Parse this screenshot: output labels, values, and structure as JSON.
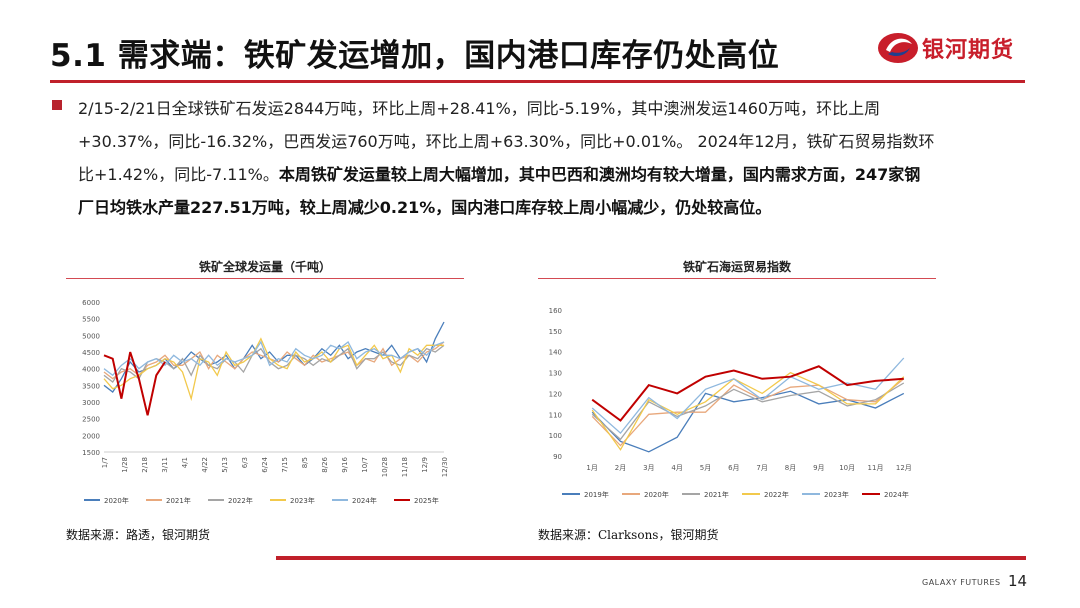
{
  "page": {
    "title": "5.1 需求端：铁矿发运增加，国内港口库存仍处高位",
    "logo_text": "银河期货",
    "footer_brand": "GALAXY FUTURES",
    "page_number": "14"
  },
  "body": {
    "line1": "2/15-2/21日全球铁矿石发运2844万吨，环比上周+28.41%，同比-5.19%，其中澳洲发运1460万吨，环比上周",
    "line2": "+30.37%，同比-16.32%，巴西发运760万吨，环比上周+63.30%，同比+0.01%。 2024年12月，铁矿石贸易指数环",
    "line3_plain": "比+1.42%，同比-7.11%。",
    "line3_bold": "本周铁矿发运量较上周大幅增加，其中巴西和澳洲均有较大增量，国内需求方面，247家钢",
    "line4_bold": "厂日均铁水产量227.51万吨，较上周减少0.21%，国内港口库存较上周小幅减少，仍处较高位。"
  },
  "colors": {
    "accent_red": "#c0202a",
    "series": [
      "#4a7ebb",
      "#e8a87c",
      "#a5a5a5",
      "#f2c94c",
      "#8fb8de",
      "#c00000"
    ]
  },
  "chart_data": [
    {
      "type": "line",
      "title": "铁矿全球发运量（千吨）",
      "source": "数据来源：路透，银河期货",
      "ylim": [
        1500,
        6000
      ],
      "yticks": [
        "6000",
        "5500",
        "5000",
        "4500",
        "4000",
        "3500",
        "3000",
        "2500",
        "2000",
        "1500"
      ],
      "xticks": [
        "1/7",
        "1/28",
        "2/18",
        "3/11",
        "4/1",
        "4/22",
        "5/13",
        "6/3",
        "6/24",
        "7/15",
        "8/5",
        "8/26",
        "9/16",
        "10/7",
        "10/28",
        "11/18",
        "12/9",
        "12/30"
      ],
      "grid": false,
      "legend": "bottom",
      "series": [
        {
          "name": "2020年",
          "values": [
            3500,
            3300,
            3700,
            4200,
            3900,
            4000,
            4100,
            4300,
            4000,
            4200,
            4500,
            4300,
            4100,
            4200,
            4400,
            4000,
            4300,
            4700,
            4300,
            4500,
            4200,
            4400,
            4400,
            4100,
            4300,
            4600,
            4400,
            4700,
            4300,
            4500,
            4600,
            4500,
            4400,
            4700,
            4300,
            4500,
            4600,
            4200,
            4900,
            5400
          ]
        },
        {
          "name": "2021年",
          "values": [
            3900,
            3700,
            3900,
            4000,
            3800,
            4100,
            4200,
            4400,
            4100,
            4100,
            4300,
            4500,
            4000,
            4400,
            4200,
            4000,
            4300,
            4500,
            4400,
            4300,
            4200,
            4500,
            4300,
            4100,
            4400,
            4200,
            4300,
            4400,
            4500,
            4100,
            4300,
            4200,
            4600,
            4100,
            4300,
            4400,
            4200,
            4500,
            4600,
            4800
          ]
        },
        {
          "name": "2022年",
          "values": [
            3800,
            3600,
            4000,
            3900,
            3700,
            4200,
            4300,
            4200,
            4000,
            4300,
            3800,
            4400,
            4100,
            4000,
            4300,
            4200,
            3900,
            4400,
            4600,
            4200,
            4000,
            4100,
            4400,
            4300,
            4100,
            4300,
            4200,
            4400,
            4600,
            4000,
            4300,
            4300,
            4500,
            4200,
            4100,
            4400,
            4300,
            4600,
            4500,
            4700
          ]
        },
        {
          "name": "2023年",
          "values": [
            3700,
            3400,
            3500,
            3700,
            3800,
            4000,
            4100,
            4300,
            4200,
            3900,
            3100,
            4300,
            4200,
            3800,
            4500,
            4100,
            4200,
            4400,
            4900,
            4300,
            4100,
            4000,
            4500,
            4200,
            4300,
            4500,
            4200,
            4600,
            4700,
            4100,
            4400,
            4700,
            4300,
            4400,
            3900,
            4600,
            4400,
            4700,
            4700,
            4700
          ]
        },
        {
          "name": "2024年",
          "values": [
            4000,
            3800,
            4100,
            4300,
            4000,
            4200,
            4300,
            4100,
            4400,
            4200,
            4300,
            4100,
            4400,
            4100,
            4300,
            4200,
            4300,
            4400,
            4800,
            4100,
            4300,
            4200,
            4600,
            4400,
            4300,
            4400,
            4700,
            4600,
            4800,
            4300,
            4500,
            4600,
            4400,
            4400,
            4300,
            4500,
            4600,
            4400,
            4700,
            4800
          ]
        },
        {
          "name": "2025年",
          "values": [
            4400,
            4300,
            3100,
            4500,
            3700,
            2600,
            3800,
            4200
          ]
        }
      ]
    },
    {
      "type": "line",
      "title": "铁矿石海运贸易指数",
      "source": "数据来源：Clarksons，银河期货",
      "ylim": [
        90,
        160
      ],
      "yticks": [
        "160",
        "150",
        "140",
        "130",
        "120",
        "110",
        "100",
        "90"
      ],
      "categories": [
        "1月",
        "2月",
        "3月",
        "4月",
        "5月",
        "6月",
        "7月",
        "8月",
        "9月",
        "10月",
        "11月",
        "12月"
      ],
      "grid": false,
      "legend": "bottom",
      "series": [
        {
          "name": "2019年",
          "values": [
            111,
            97,
            92,
            99,
            120,
            116,
            118,
            121,
            115,
            117,
            113,
            120
          ]
        },
        {
          "name": "2020年",
          "values": [
            109,
            95,
            110,
            111,
            111,
            124,
            117,
            123,
            124,
            117,
            116,
            127
          ]
        },
        {
          "name": "2021年",
          "values": [
            110,
            98,
            116,
            109,
            114,
            122,
            116,
            119,
            121,
            114,
            117,
            125
          ]
        },
        {
          "name": "2022年",
          "values": [
            112,
            93,
            117,
            110,
            116,
            127,
            120,
            130,
            124,
            115,
            115,
            128
          ]
        },
        {
          "name": "2023年",
          "values": [
            113,
            101,
            118,
            108,
            122,
            127,
            117,
            128,
            122,
            125,
            122,
            137
          ]
        },
        {
          "name": "2024年",
          "values": [
            117,
            107,
            124,
            120,
            128,
            131,
            127,
            128,
            133,
            124,
            126,
            127
          ]
        }
      ]
    }
  ]
}
